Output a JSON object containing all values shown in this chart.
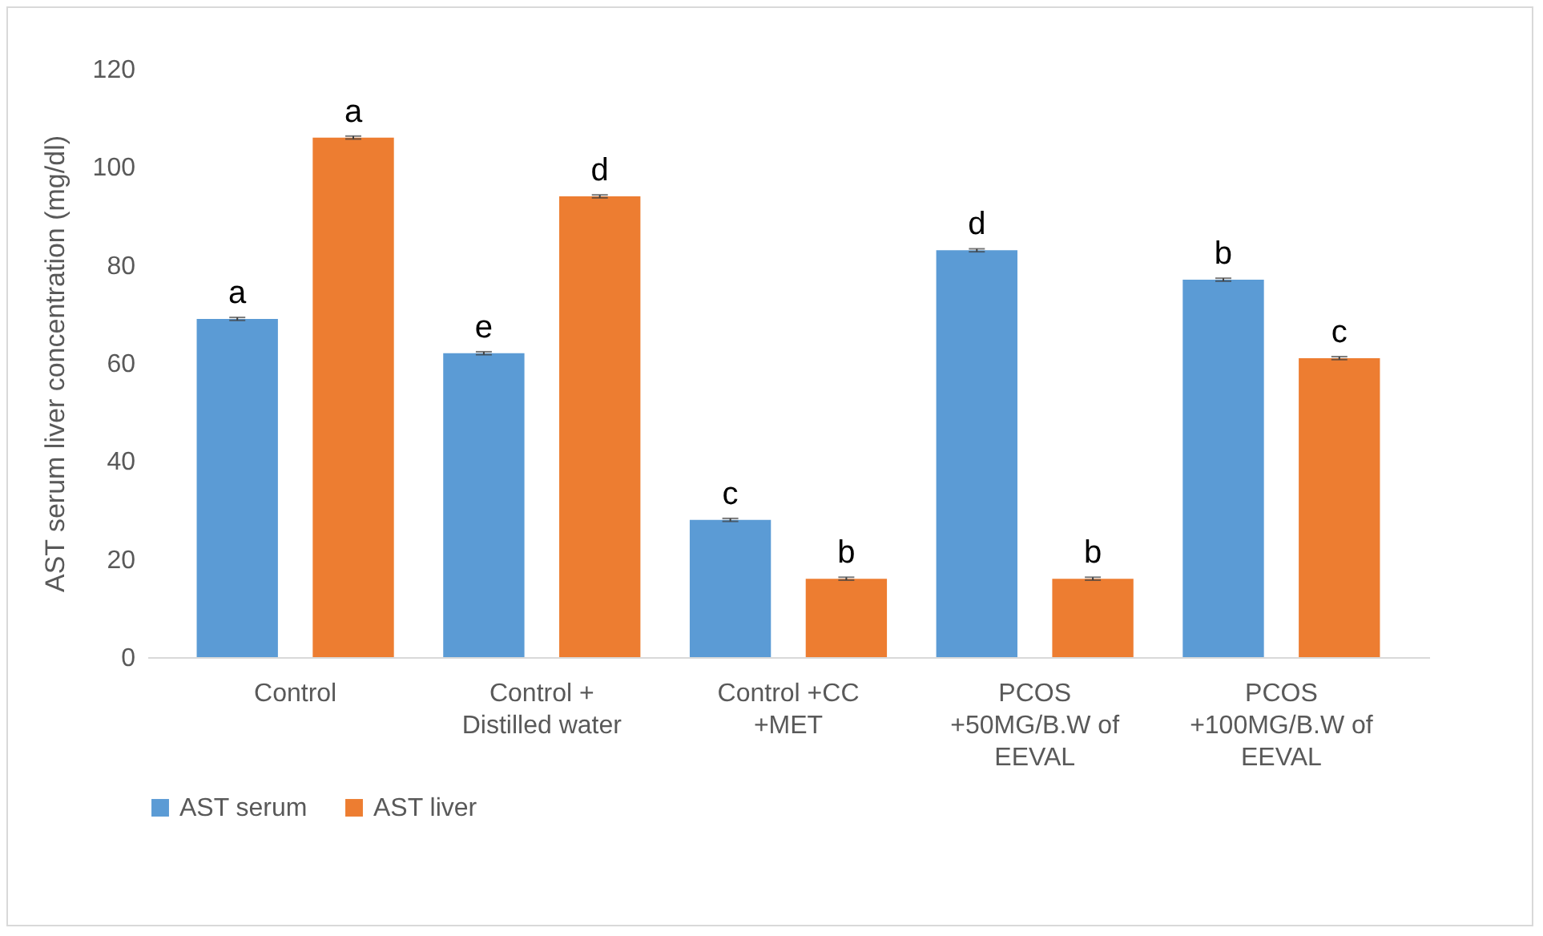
{
  "chart_data": {
    "type": "bar",
    "ylabel": "AST serum liver concentration (mg/dl)",
    "categories": [
      "Control",
      "Control +\nDistilled water",
      "Control +CC\n+MET",
      "PCOS\n+50MG/B.W of\nEEVAL",
      "PCOS\n+100MG/B.W of\nEEVAL"
    ],
    "series": [
      {
        "name": "AST serum",
        "color": "#5b9bd5",
        "values": [
          69,
          62,
          28,
          83,
          77
        ],
        "errors": [
          0.3,
          0.3,
          0.3,
          0.3,
          0.3
        ],
        "value_labels": [
          "a",
          "e",
          "c",
          "d",
          "b"
        ]
      },
      {
        "name": "AST liver",
        "color": "#ed7d31",
        "values": [
          106,
          94,
          16,
          16,
          61
        ],
        "errors": [
          0.3,
          0.3,
          0.3,
          0.3,
          0.3
        ],
        "value_labels": [
          "a",
          "d",
          "b",
          "b",
          "c"
        ]
      }
    ],
    "ylim": [
      0,
      120
    ],
    "yticks": [
      0,
      20,
      40,
      60,
      80,
      100,
      120
    ],
    "grid": false,
    "legend": "bottom"
  }
}
